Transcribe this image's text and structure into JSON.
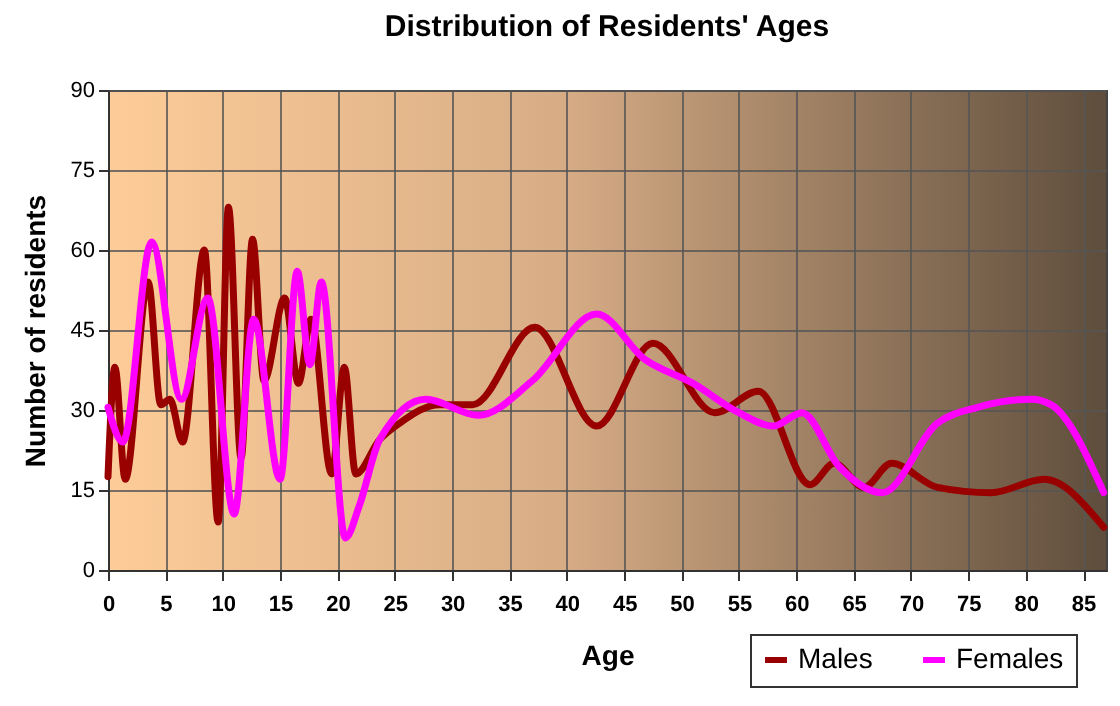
{
  "chart_data": {
    "type": "line",
    "title": "Distribution of Residents' Ages",
    "xlabel": "Age",
    "ylabel": "Number of residents",
    "xlim": [
      0,
      87
    ],
    "xticks": [
      0,
      5,
      10,
      15,
      20,
      25,
      30,
      35,
      40,
      45,
      50,
      55,
      60,
      65,
      70,
      75,
      80,
      85
    ],
    "ylim": [
      0,
      90
    ],
    "yticks": [
      0,
      15,
      30,
      45,
      60,
      75,
      90
    ],
    "grid": true,
    "legend": "bottom right",
    "line_style": "solid",
    "series": [
      {
        "name": "Males",
        "color": "#990000",
        "x": [
          0,
          0.6,
          1.5,
          3.5,
          4.6,
          5.4,
          6.5,
          8.4,
          9.6,
          10.5,
          11.6,
          12.6,
          13.6,
          15.4,
          16.6,
          17.7,
          19.5,
          20.6,
          21.6,
          23.7,
          25.4,
          28.9,
          31.8,
          37.2,
          42.6,
          47.5,
          52.9,
          56.7,
          61.2,
          63.3,
          65.9,
          68.3,
          72.3,
          77,
          81.6,
          86.8
        ],
        "values": [
          17.5,
          38,
          17,
          54,
          31,
          32,
          24,
          60,
          9,
          68,
          21,
          62,
          35.5,
          51,
          35,
          47,
          18,
          38,
          18,
          24.5,
          27.5,
          31,
          31,
          45.5,
          27,
          42.5,
          29.5,
          33.5,
          16,
          20,
          15.5,
          20,
          15.5,
          14.5,
          17,
          8
        ]
      },
      {
        "name": "Females",
        "color": "#ff00ff",
        "x": [
          0,
          1.3,
          3.8,
          6.4,
          8.7,
          11,
          12.7,
          15,
          16.5,
          17.6,
          18.6,
          20.7,
          21.9,
          23.7,
          27.7,
          32.3,
          37,
          42.6,
          46.8,
          51,
          55,
          58,
          60.5,
          63.7,
          67.5,
          72.3,
          75.8,
          80.5,
          82.2,
          86.8
        ],
        "values": [
          30.5,
          24,
          61.5,
          32,
          51,
          10.5,
          47,
          17,
          56,
          38.5,
          54,
          6,
          12,
          24.5,
          32,
          29,
          35.5,
          48,
          39.5,
          35,
          29.5,
          27,
          29.5,
          19.5,
          14.5,
          27.5,
          30.5,
          32,
          31,
          14.5
        ]
      }
    ]
  }
}
